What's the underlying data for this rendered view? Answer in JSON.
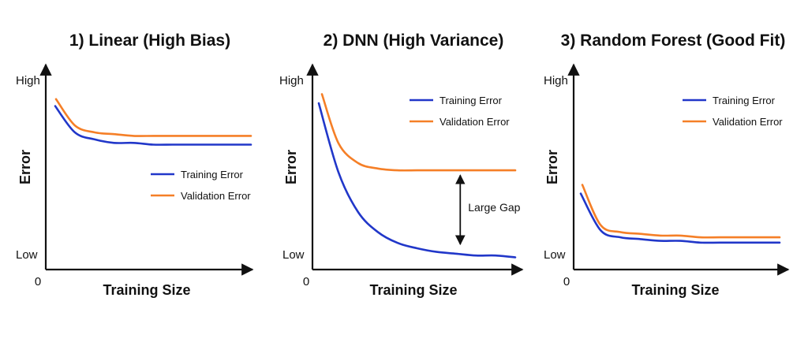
{
  "colors": {
    "training": "#2137c9",
    "validation": "#f57f27",
    "axis": "#111111"
  },
  "chart_data": [
    {
      "type": "line",
      "title": "1) Linear (High Bias)",
      "xlabel": "Training Size",
      "ylabel": "Error",
      "x_origin_label": "0",
      "y_tick_labels": [
        "High",
        "Low"
      ],
      "ylim": [
        0,
        1
      ],
      "x": [
        0,
        0.1,
        0.2,
        0.3,
        0.4,
        0.5,
        0.6,
        0.7,
        0.8,
        0.9,
        1.0
      ],
      "series": [
        {
          "name": "Training Error",
          "values": [
            0.88,
            0.73,
            0.69,
            0.67,
            0.67,
            0.66,
            0.66,
            0.66,
            0.66,
            0.66,
            0.66
          ]
        },
        {
          "name": "Validation Error",
          "values": [
            0.92,
            0.77,
            0.73,
            0.72,
            0.71,
            0.71,
            0.71,
            0.71,
            0.71,
            0.71,
            0.71
          ]
        }
      ],
      "legend_position": "center-right",
      "grid": false
    },
    {
      "type": "line",
      "title": "2) DNN (High Variance)",
      "xlabel": "Training Size",
      "ylabel": "Error",
      "x_origin_label": "0",
      "y_tick_labels": [
        "High",
        "Low"
      ],
      "ylim": [
        0,
        1
      ],
      "x": [
        0,
        0.1,
        0.2,
        0.3,
        0.4,
        0.5,
        0.6,
        0.7,
        0.8,
        0.9,
        1.0
      ],
      "series": [
        {
          "name": "Training Error",
          "values": [
            0.9,
            0.52,
            0.3,
            0.19,
            0.13,
            0.1,
            0.08,
            0.07,
            0.06,
            0.06,
            0.05
          ]
        },
        {
          "name": "Validation Error",
          "values": [
            0.95,
            0.68,
            0.57,
            0.54,
            0.53,
            0.53,
            0.53,
            0.53,
            0.53,
            0.53,
            0.53
          ]
        }
      ],
      "annotation": {
        "text": "Large Gap",
        "x": 0.72,
        "y_from": 0.52,
        "y_to": 0.07
      },
      "legend_position": "top-right",
      "grid": false
    },
    {
      "type": "line",
      "title": "3) Random Forest (Good Fit)",
      "xlabel": "Training Size",
      "ylabel": "Error",
      "x_origin_label": "0",
      "y_tick_labels": [
        "High",
        "Low"
      ],
      "ylim": [
        0,
        1
      ],
      "x": [
        0,
        0.1,
        0.2,
        0.3,
        0.4,
        0.5,
        0.6,
        0.7,
        0.8,
        0.9,
        1.0
      ],
      "series": [
        {
          "name": "Training Error",
          "values": [
            0.38,
            0.17,
            0.13,
            0.12,
            0.11,
            0.11,
            0.1,
            0.1,
            0.1,
            0.1,
            0.1
          ]
        },
        {
          "name": "Validation Error",
          "values": [
            0.43,
            0.2,
            0.16,
            0.15,
            0.14,
            0.14,
            0.13,
            0.13,
            0.13,
            0.13,
            0.13
          ]
        }
      ],
      "legend_position": "top-right",
      "grid": false
    }
  ]
}
